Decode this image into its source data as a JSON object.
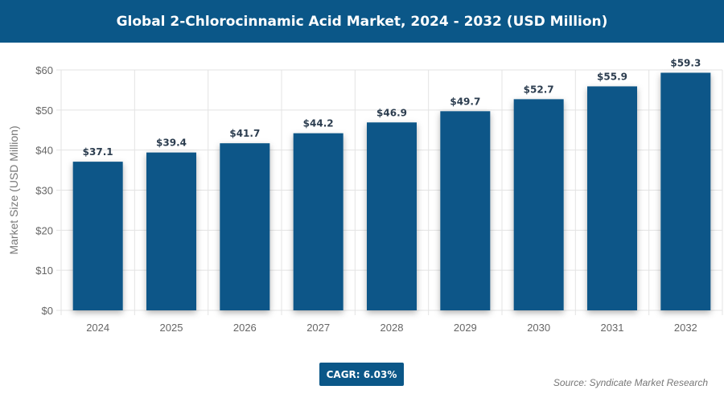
{
  "chart_data": {
    "type": "bar",
    "title": "Global 2-Chlorocinnamic Acid Market, 2024 - 2032 (USD Million)",
    "xlabel": "",
    "ylabel": "Market Size (USD Million)",
    "categories": [
      "2024",
      "2025",
      "2026",
      "2027",
      "2028",
      "2029",
      "2030",
      "2031",
      "2032"
    ],
    "values": [
      37.1,
      39.4,
      41.7,
      44.2,
      46.9,
      49.7,
      52.7,
      55.9,
      59.3
    ],
    "data_labels": [
      "$37.1",
      "$39.4",
      "$41.7",
      "$44.2",
      "$46.9",
      "$49.7",
      "$52.7",
      "$55.9",
      "$59.3"
    ],
    "ylim": [
      0,
      60
    ],
    "yticks": [
      "$0",
      "$10",
      "$20",
      "$30",
      "$40",
      "$50",
      "$60"
    ],
    "grid": true,
    "bar_color": "#0b5788"
  },
  "cagr": "CAGR: 6.03%",
  "source": "Source: Syndicate Market Research"
}
